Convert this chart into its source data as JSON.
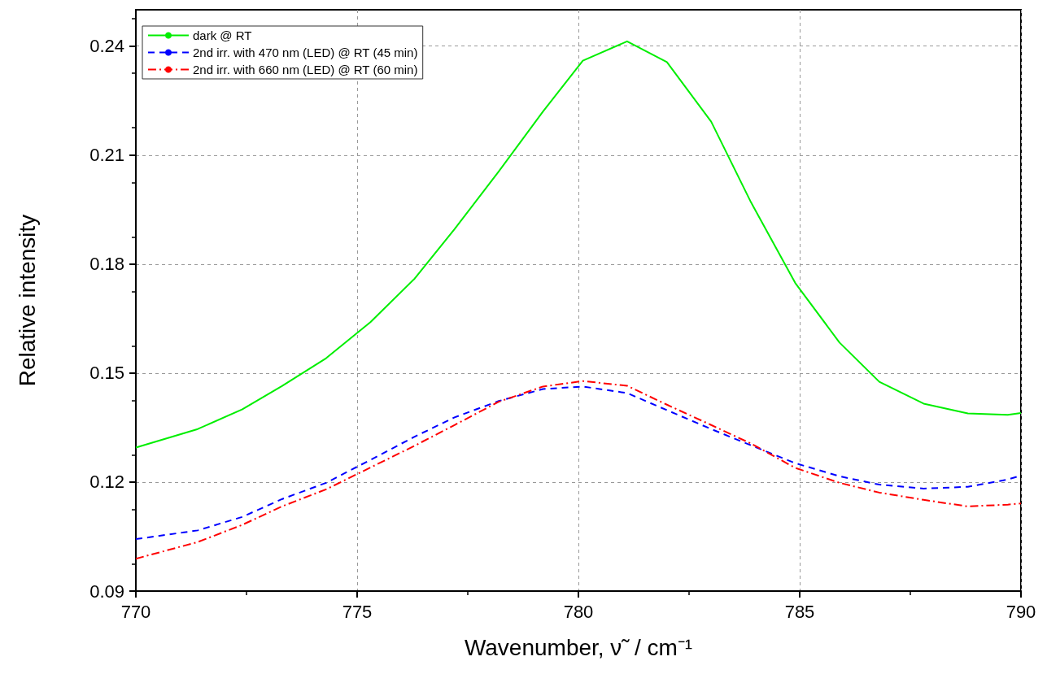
{
  "chart_data": {
    "type": "line",
    "xlabel": "Wavenumber, ν̃  / cm⁻¹",
    "ylabel": "Relative intensity",
    "x": [
      770,
      771.4,
      772.4,
      773.3,
      774.3,
      775.3,
      776.3,
      777.2,
      778.2,
      779.2,
      780.1,
      781.1,
      782.0,
      783.0,
      783.9,
      784.9,
      785.9,
      786.8,
      787.8,
      788.8,
      789.7,
      790
    ],
    "series": [
      {
        "name": "dark @ RT",
        "color": "#00ee00",
        "line_style": "solid",
        "values": [
          0.1295,
          0.1346,
          0.14,
          0.1464,
          0.1541,
          0.164,
          0.176,
          0.1896,
          0.2055,
          0.222,
          0.236,
          0.2413,
          0.2356,
          0.2192,
          0.197,
          0.1748,
          0.1584,
          0.1476,
          0.1416,
          0.1389,
          0.1385,
          0.139
        ]
      },
      {
        "name": "2nd irr. with 470 nm (LED) @ RT (45 min)",
        "color": "#0000ff",
        "line_style": "dashed",
        "values": [
          0.1043,
          0.1067,
          0.1104,
          0.1153,
          0.1198,
          0.1261,
          0.1325,
          0.1378,
          0.1423,
          0.1456,
          0.1463,
          0.1445,
          0.1398,
          0.1346,
          0.1301,
          0.1252,
          0.1216,
          0.1193,
          0.1182,
          0.1187,
          0.1207,
          0.1218
        ]
      },
      {
        "name": "2nd irr. with 660 nm (LED) @ RT (60 min)",
        "color": "#ff0000",
        "line_style": "dashdot",
        "values": [
          0.0989,
          0.1035,
          0.1082,
          0.1133,
          0.118,
          0.124,
          0.13,
          0.1357,
          0.1421,
          0.1463,
          0.1478,
          0.1465,
          0.1413,
          0.1357,
          0.1306,
          0.1239,
          0.1198,
          0.1171,
          0.1151,
          0.1133,
          0.1138,
          0.1141
        ]
      }
    ],
    "xlim": [
      770,
      790
    ],
    "xticks": [
      770,
      775,
      780,
      785,
      790
    ],
    "ylim": [
      0.09,
      0.25
    ],
    "yticks": [
      {
        "value": 0.09,
        "label": "0.09"
      },
      {
        "value": 0.12,
        "label": "0.12"
      },
      {
        "value": 0.15,
        "label": "0.15"
      },
      {
        "value": 0.18,
        "label": "0.18"
      },
      {
        "value": 0.21,
        "label": "0.21"
      },
      {
        "value": 0.24,
        "label": "0.24"
      }
    ],
    "grid": true,
    "legend": "top left",
    "marker": "none"
  }
}
